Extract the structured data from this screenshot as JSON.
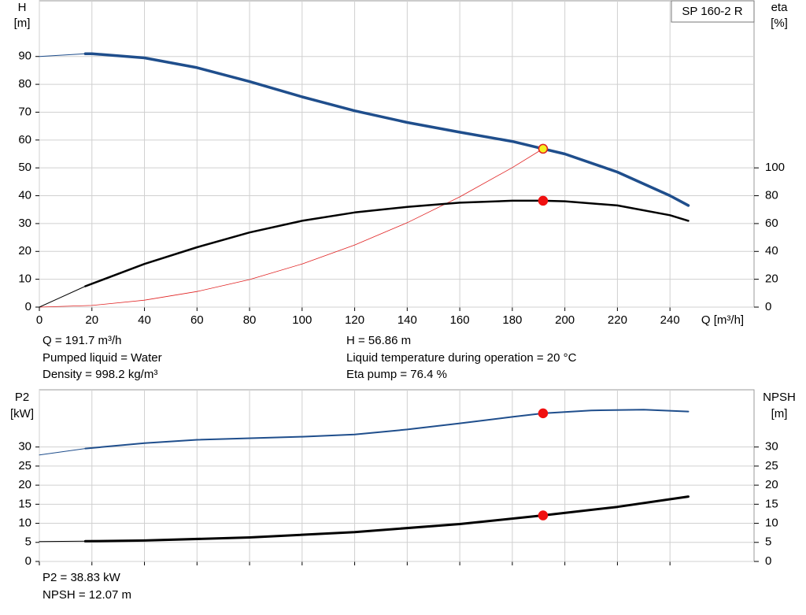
{
  "chart_data": [
    {
      "type": "line",
      "title": "SP 160-2 R",
      "ylabel": {
        "name": "H",
        "unit": "[m]"
      },
      "y2label": {
        "name": "eta",
        "unit": "[%]"
      },
      "xlabel": "Q [m³/h]",
      "xlim": [
        0,
        272
      ],
      "xticks": [
        0,
        20,
        40,
        60,
        80,
        100,
        120,
        140,
        160,
        180,
        200,
        220,
        240
      ],
      "show_xtick_labels": true,
      "ylim": [
        0,
        110
      ],
      "yticks": [
        0,
        10,
        20,
        30,
        40,
        50,
        60,
        70,
        80,
        90
      ],
      "y2lim": [
        0,
        220
      ],
      "y2ticks": [
        0,
        20,
        40,
        60,
        80,
        100
      ],
      "grid": true,
      "series": [
        {
          "color": "#1f4e8c",
          "line_width": 1,
          "x": [
            0,
            17.5
          ],
          "values": [
            90,
            91
          ]
        },
        {
          "color": "#1f4e8c",
          "line_width": 3.5,
          "x": [
            17.5,
            20,
            40,
            60,
            80,
            100,
            120,
            140,
            160,
            180,
            191.7,
            200,
            220,
            240,
            247
          ],
          "values": [
            91,
            91,
            89.5,
            86,
            81,
            75.5,
            70.5,
            66.3,
            62.8,
            59.5,
            56.86,
            55,
            48.5,
            40,
            36.5
          ]
        },
        {
          "color": "#e02020",
          "line_width": 0.8,
          "x": [
            0,
            20,
            40,
            60,
            80,
            100,
            120,
            140,
            160,
            180,
            191.7
          ],
          "values": [
            0,
            0.6,
            2.5,
            5.6,
            9.9,
            15.5,
            22.3,
            30.3,
            39.6,
            50.1,
            56.86
          ]
        },
        {
          "color": "#000000",
          "line_width": 1,
          "axis": "y2",
          "x": [
            0,
            17.5
          ],
          "values": [
            0,
            15
          ]
        },
        {
          "color": "#000000",
          "line_width": 2.5,
          "axis": "y2",
          "x": [
            17.5,
            40,
            60,
            80,
            100,
            120,
            140,
            160,
            180,
            191.7,
            200,
            220,
            240,
            247
          ],
          "values": [
            15,
            31,
            43,
            53.6,
            62,
            68,
            72,
            75,
            76.4,
            76.4,
            76,
            73,
            66,
            62
          ]
        }
      ],
      "points": [
        {
          "x": 191.7,
          "y": 56.86,
          "fill": "#f5f020",
          "stroke": "#e02020"
        },
        {
          "x": 191.7,
          "y": 76.4,
          "axis": "y2",
          "fill": "#f01010",
          "stroke": "#f01010"
        }
      ],
      "info": [
        "Q = 191.7 m³/h",
        "Pumped liquid = Water",
        "Density = 998.2 kg/m³",
        "H = 56.86 m",
        "Liquid temperature during operation = 20 °C",
        "Eta pump = 76.4 %"
      ]
    },
    {
      "type": "line",
      "ylabel": {
        "name": "P2",
        "unit": "[kW]"
      },
      "y2label": {
        "name": "NPSH",
        "unit": "[m]"
      },
      "xlim": [
        0,
        272
      ],
      "xticks": [
        0,
        20,
        40,
        60,
        80,
        100,
        120,
        140,
        160,
        180,
        200,
        220,
        240
      ],
      "show_xtick_labels": false,
      "ylim": [
        0,
        45
      ],
      "yticks": [
        0,
        5,
        10,
        15,
        20,
        25,
        30
      ],
      "y2lim": [
        0,
        45
      ],
      "y2ticks": [
        0,
        5,
        10,
        15,
        20,
        25,
        30
      ],
      "grid": true,
      "series": [
        {
          "color": "#1f4e8c",
          "line_width": 1,
          "x": [
            0,
            17.5
          ],
          "values": [
            27.9,
            29.6
          ]
        },
        {
          "color": "#1f4e8c",
          "line_width": 2,
          "x": [
            17.5,
            40,
            60,
            100,
            120,
            140,
            160,
            180,
            191.7,
            210,
            230,
            247
          ],
          "values": [
            29.6,
            31,
            31.9,
            32.7,
            33.3,
            34.6,
            36.2,
            37.9,
            38.83,
            39.6,
            39.8,
            39.3
          ]
        },
        {
          "color": "#000000",
          "line_width": 1,
          "axis": "y2",
          "x": [
            0,
            17.5
          ],
          "values": [
            5.2,
            5.3
          ]
        },
        {
          "color": "#000000",
          "line_width": 3,
          "axis": "y2",
          "x": [
            17.5,
            40,
            80,
            120,
            160,
            191.7,
            220,
            247
          ],
          "values": [
            5.3,
            5.5,
            6.3,
            7.7,
            9.8,
            12.07,
            14.3,
            17
          ]
        }
      ],
      "points": [
        {
          "x": 191.7,
          "y": 38.83,
          "fill": "#f01010",
          "stroke": "#f01010"
        },
        {
          "x": 191.7,
          "y": 12.07,
          "axis": "y2",
          "fill": "#f01010",
          "stroke": "#f01010"
        }
      ],
      "info": [
        "P2 = 38.83 kW",
        "NPSH = 12.07 m"
      ]
    }
  ]
}
